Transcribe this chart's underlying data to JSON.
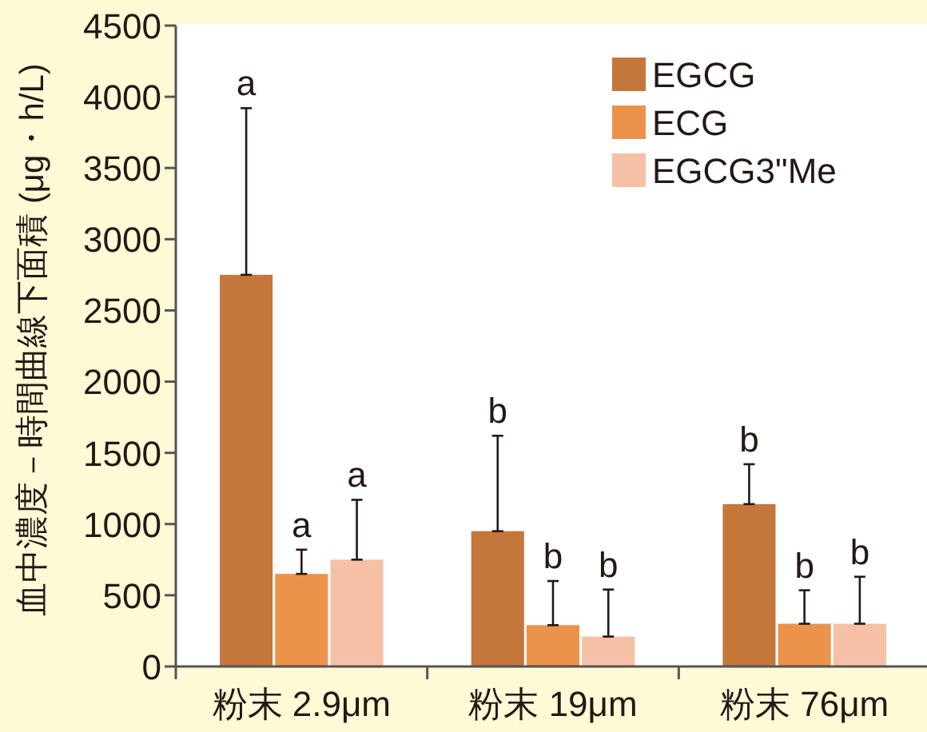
{
  "chart_data": {
    "type": "bar",
    "ylabel": "血中濃度－時間曲線下面積 (μg・h/L)",
    "categories": [
      "粉末 2.9μm",
      "粉末 19μm",
      "粉末 76μm"
    ],
    "series": [
      {
        "name": "EGCG",
        "color": "#c4773b",
        "values": [
          2750,
          950,
          1140
        ],
        "errors": [
          [
            2750,
            3920
          ],
          [
            950,
            1620
          ],
          [
            1140,
            1420
          ]
        ]
      },
      {
        "name": "ECG",
        "color": "#ec934b",
        "values": [
          650,
          290,
          300
        ],
        "errors": [
          [
            650,
            820
          ],
          [
            290,
            600
          ],
          [
            300,
            535
          ]
        ]
      },
      {
        "name": "EGCG3\"Me",
        "color": "#f5c0a5",
        "values": [
          750,
          210,
          300
        ],
        "errors": [
          [
            750,
            1170
          ],
          [
            210,
            540
          ],
          [
            300,
            630
          ]
        ]
      }
    ],
    "ylim": [
      0,
      4500
    ],
    "yticks": [
      0,
      500,
      1000,
      1500,
      2000,
      2500,
      3000,
      3500,
      4000,
      4500
    ],
    "grid": false,
    "legend": "top right",
    "annotations": [
      "a",
      "a",
      "a",
      "b",
      "b",
      "b",
      "b",
      "b",
      "b"
    ]
  }
}
